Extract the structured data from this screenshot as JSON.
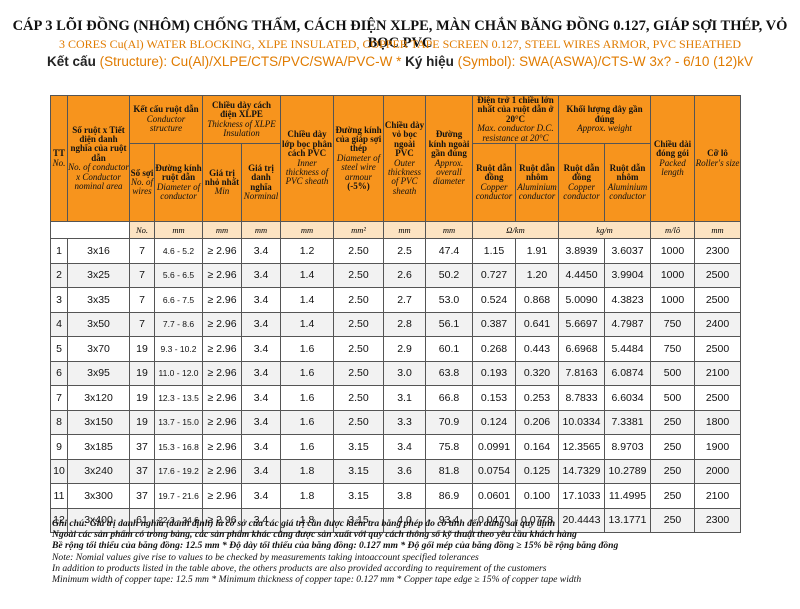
{
  "title": "CÁP 3 LÕI ĐỒNG (NHÔM) CHỐNG THẤM, CÁCH ĐIỆN XLPE, MÀN CHẮN BĂNG ĐỒNG 0.127, GIÁP SỢI THÉP, VỎ BỌC PVC",
  "subtitle": "3 CORES Cu(Al) WATER BLOCKING, XLPE INSULATED, COPPER TAPE SCREEN 0.127, STEEL WIRES ARMOR,  PVC SHEATHED",
  "structure": {
    "label1": "Kết cấu ",
    "label2": "(Structure): Cu(Al)/XLPE/CTS/PVC/SWA/PVC-W  * ",
    "label3": "Ký hiệu ",
    "label4": "(Symbol): SWA(ASWA)/CTS-W 3x? - 6/10 (12)kV"
  },
  "headers": {
    "tt": "TT",
    "tt_en": "No.",
    "so_ruot": "Số ruột x Tiết diện danh nghĩa của ruột dẫn",
    "so_ruot_en": "No. of conductor x Conductor nominal area",
    "ket_cau": "Kết cấu ruột dẫn",
    "ket_cau_en": "Conductor structure",
    "so_soi": "Số sợi",
    "so_soi_en": "No. of wires",
    "dk_ruot": "Đường kính ruột dẫn",
    "dk_ruot_en": "Diameter of conductor",
    "xlpe": "Chiều dày cách điện XLPE",
    "xlpe_en": "Thickness of XLPE Insulation",
    "min": "Giá trị nhỏ nhất",
    "min_en": "Min",
    "nominal": "Giá trị danh nghĩa",
    "nominal_en": "Norminal",
    "lop_boc": "Chiều dày lớp bọc phân cách PVC",
    "lop_boc_en": "Inner thickness of PVC sheath",
    "giap": "Đường kính của giáp sợi thép",
    "giap_en": "Diameter of steel wire armour",
    "giap_tol": "(-5%)",
    "vo_boc": "Chiều dày vỏ bọc ngoài PVC",
    "vo_boc_en": "Outer thickness of PVC sheath",
    "dk_ngoai": "Đường kính ngoài gần đúng",
    "dk_ngoai_en": "Approx. overall diameter",
    "dien_tro": "Điện trở 1 chiều lớn nhất của ruột dẫn ở 20°C",
    "dien_tro_en": "Max. conductor D.C. resistance at 20°C",
    "khoi_luong": "Khối lượng dây gần đúng",
    "khoi_luong_en": "Approx. weight",
    "cu": "Ruột dẫn đồng",
    "cu_en": "Copper conductor",
    "al": "Ruột dẫn nhôm",
    "al_en": "Aluminium conductor",
    "chieu_dai": "Chiều dài đóng gói",
    "chieu_dai_en": "Packed length",
    "co_lo": "Cỡ lô",
    "co_lo_en": "Roller's size"
  },
  "units": [
    "No.",
    "mm",
    "mm",
    "mm",
    "mm",
    "mm²",
    "mm",
    "mm",
    "Ω/km",
    "kg/m",
    "m/lô",
    "mm"
  ],
  "rows": [
    [
      "1",
      "3x16",
      "7",
      "4.6 - 5.2",
      "≥ 2.96",
      "3.4",
      "1.2",
      "2.50",
      "2.5",
      "47.4",
      "1.15",
      "1.91",
      "3.8939",
      "3.6037",
      "1000",
      "2300"
    ],
    [
      "2",
      "3x25",
      "7",
      "5.6 - 6.5",
      "≥ 2.96",
      "3.4",
      "1.4",
      "2.50",
      "2.6",
      "50.2",
      "0.727",
      "1.20",
      "4.4450",
      "3.9904",
      "1000",
      "2500"
    ],
    [
      "3",
      "3x35",
      "7",
      "6.6 - 7.5",
      "≥ 2.96",
      "3.4",
      "1.4",
      "2.50",
      "2.7",
      "53.0",
      "0.524",
      "0.868",
      "5.0090",
      "4.3823",
      "1000",
      "2500"
    ],
    [
      "4",
      "3x50",
      "7",
      "7.7 - 8.6",
      "≥ 2.96",
      "3.4",
      "1.4",
      "2.50",
      "2.8",
      "56.1",
      "0.387",
      "0.641",
      "5.6697",
      "4.7987",
      "750",
      "2400"
    ],
    [
      "5",
      "3x70",
      "19",
      "9.3 - 10.2",
      "≥ 2.96",
      "3.4",
      "1.6",
      "2.50",
      "2.9",
      "60.1",
      "0.268",
      "0.443",
      "6.6968",
      "5.4484",
      "750",
      "2500"
    ],
    [
      "6",
      "3x95",
      "19",
      "11.0 - 12.0",
      "≥ 2.96",
      "3.4",
      "1.6",
      "2.50",
      "3.0",
      "63.8",
      "0.193",
      "0.320",
      "7.8163",
      "6.0874",
      "500",
      "2100"
    ],
    [
      "7",
      "3x120",
      "19",
      "12.3 - 13.5",
      "≥ 2.96",
      "3.4",
      "1.6",
      "2.50",
      "3.1",
      "66.8",
      "0.153",
      "0.253",
      "8.7833",
      "6.6034",
      "500",
      "2500"
    ],
    [
      "8",
      "3x150",
      "19",
      "13.7 - 15.0",
      "≥ 2.96",
      "3.4",
      "1.6",
      "2.50",
      "3.3",
      "70.9",
      "0.124",
      "0.206",
      "10.0334",
      "7.3381",
      "250",
      "1800"
    ],
    [
      "9",
      "3x185",
      "37",
      "15.3 - 16.8",
      "≥ 2.96",
      "3.4",
      "1.6",
      "3.15",
      "3.4",
      "75.8",
      "0.0991",
      "0.164",
      "12.3565",
      "8.9703",
      "250",
      "1900"
    ],
    [
      "10",
      "3x240",
      "37",
      "17.6 - 19.2",
      "≥ 2.96",
      "3.4",
      "1.8",
      "3.15",
      "3.6",
      "81.8",
      "0.0754",
      "0.125",
      "14.7329",
      "10.2789",
      "250",
      "2000"
    ],
    [
      "11",
      "3x300",
      "37",
      "19.7 - 21.6",
      "≥ 2.96",
      "3.4",
      "1.8",
      "3.15",
      "3.8",
      "86.9",
      "0.0601",
      "0.100",
      "17.1033",
      "11.4995",
      "250",
      "2100"
    ],
    [
      "12",
      "3x400",
      "61",
      "22.3 - 24.6",
      "≥ 2.96",
      "3.4",
      "1.8",
      "3.15",
      "4.0",
      "93.4",
      "0.0470",
      "0.0778",
      "20.4443",
      "13.1771",
      "250",
      "2300"
    ]
  ],
  "notes": [
    "Ghi chú: Giá trị danh nghĩa (danh định) là cơ sở của các giá trị cần được kiểm tra bằng phép đo có tính đến dung sai quy định",
    "Ngoài các sản phẩm có trong bảng, các sản phẩm khác cũng được sản xuất với quy cách thông số kỹ thuật theo yêu cầu khách hàng",
    "Bề rộng tối thiểu của băng đồng: 12.5 mm * Độ dày tối thiểu của băng đồng: 0.127 mm * Độ gối mép của băng đồng ≥ 15% bề rộng băng đồng",
    "Note: Nomial values give rise to values to be checked by measurements taking intoaccount specified tolerances",
    "In addition to products listed in the table above, the others products are also provided according to requirement of the customers",
    "Minimum width of copper tape: 12.5 mm * Minimum thickness of copper tape: 0.127 mm * Copper tape edge ≥ 15% of copper tape width"
  ]
}
